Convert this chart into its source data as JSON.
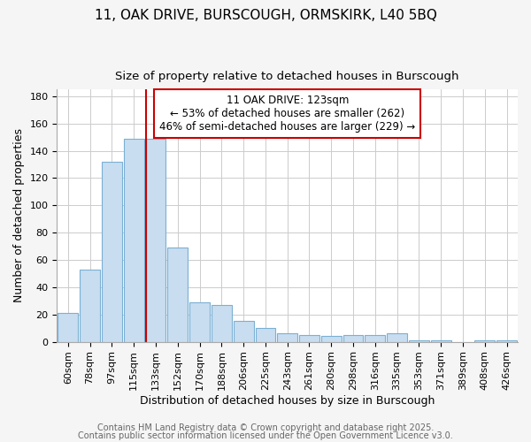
{
  "title1": "11, OAK DRIVE, BURSCOUGH, ORMSKIRK, L40 5BQ",
  "title2": "Size of property relative to detached houses in Burscough",
  "xlabel": "Distribution of detached houses by size in Burscough",
  "ylabel": "Number of detached properties",
  "categories": [
    "60sqm",
    "78sqm",
    "97sqm",
    "115sqm",
    "133sqm",
    "152sqm",
    "170sqm",
    "188sqm",
    "206sqm",
    "225sqm",
    "243sqm",
    "261sqm",
    "280sqm",
    "298sqm",
    "316sqm",
    "335sqm",
    "353sqm",
    "371sqm",
    "389sqm",
    "408sqm",
    "426sqm"
  ],
  "values": [
    21,
    53,
    132,
    149,
    149,
    69,
    29,
    27,
    15,
    10,
    6,
    5,
    4,
    5,
    5,
    6,
    1,
    1,
    0,
    1,
    1
  ],
  "bar_color": "#c8ddf0",
  "bar_edge_color": "#7ab0d4",
  "vline_x_index": 4,
  "vline_color": "#cc0000",
  "annotation_text": "11 OAK DRIVE: 123sqm\n← 53% of detached houses are smaller (262)\n46% of semi-detached houses are larger (229) →",
  "annotation_box_color": "#cc0000",
  "ylim": [
    0,
    185
  ],
  "yticks": [
    0,
    20,
    40,
    60,
    80,
    100,
    120,
    140,
    160,
    180
  ],
  "background_color": "#ffffff",
  "grid_color": "#cccccc",
  "plot_bg_color": "#ffffff",
  "fig_bg_color": "#f5f5f5",
  "footer_line1": "Contains HM Land Registry data © Crown copyright and database right 2025.",
  "footer_line2": "Contains public sector information licensed under the Open Government Licence v3.0.",
  "title_fontsize": 11,
  "subtitle_fontsize": 9.5,
  "label_fontsize": 9,
  "tick_fontsize": 8,
  "footer_fontsize": 7,
  "ann_fontsize": 8.5
}
